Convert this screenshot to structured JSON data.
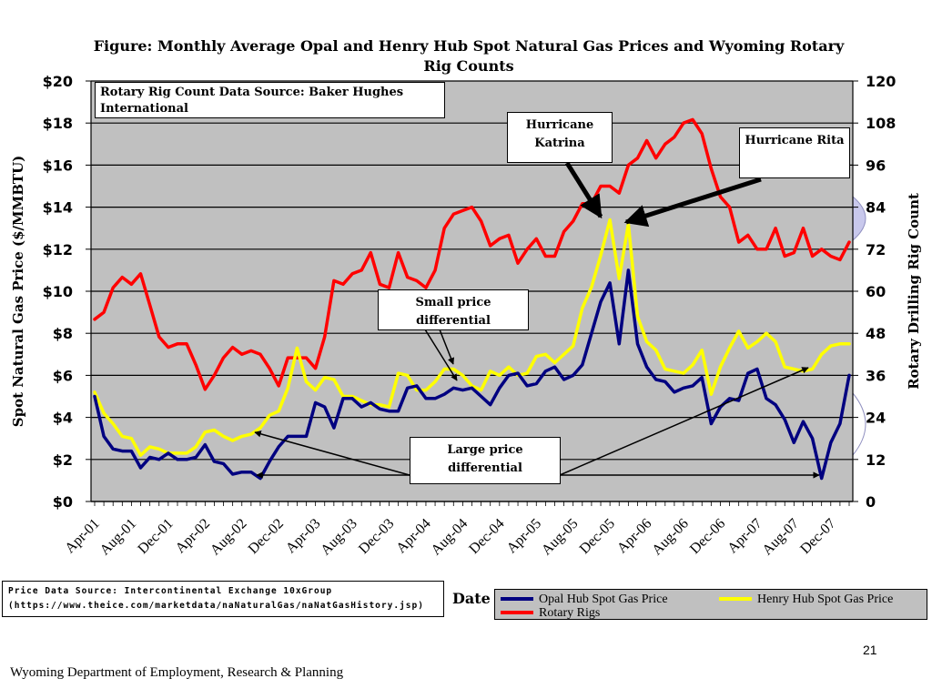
{
  "chart_data": {
    "type": "line",
    "title": "Figure: Monthly Average Opal and Henry Hub Spot Natural Gas Prices and Wyoming Rotary Rig Counts",
    "xlabel": "Date",
    "ylabel": "Spot Natural Gas Price ($/MMBTU)",
    "y2label": "Rotary Drilling Rig Count",
    "ylim": [
      0,
      20
    ],
    "y2lim": [
      0,
      120
    ],
    "yticks": [
      "$0",
      "$2",
      "$4",
      "$6",
      "$8",
      "$10",
      "$12",
      "$14",
      "$16",
      "$18",
      "$20"
    ],
    "y2ticks": [
      "0",
      "12",
      "24",
      "36",
      "48",
      "60",
      "72",
      "84",
      "96",
      "108",
      "120"
    ],
    "x_start": "Apr-01",
    "x_end": "Mar-08",
    "xticks": [
      "Apr-01",
      "Aug-01",
      "Dec-01",
      "Apr-02",
      "Aug-02",
      "Dec-02",
      "Apr-03",
      "Aug-03",
      "Dec-03",
      "Apr-04",
      "Aug-04",
      "Dec-04",
      "Apr-05",
      "Aug-05",
      "Dec-05",
      "Apr-06",
      "Aug-06",
      "Dec-06",
      "Apr-07",
      "Aug-07",
      "Dec-07"
    ],
    "grid": true,
    "legend_position": "bottom-right",
    "series": [
      {
        "name": "Opal Hub Spot Gas Price",
        "axis": "left",
        "color": "#000080",
        "values": [
          5.0,
          3.1,
          2.5,
          2.4,
          2.4,
          1.6,
          2.1,
          2.0,
          2.3,
          2.0,
          2.0,
          2.1,
          2.7,
          1.9,
          1.8,
          1.3,
          1.4,
          1.4,
          1.1,
          1.9,
          2.6,
          3.1,
          3.1,
          3.1,
          4.7,
          4.5,
          3.5,
          4.9,
          4.9,
          4.5,
          4.7,
          4.4,
          4.3,
          4.3,
          5.4,
          5.5,
          4.9,
          4.9,
          5.1,
          5.4,
          5.3,
          5.4,
          5.0,
          4.6,
          5.4,
          6.0,
          6.1,
          5.5,
          5.6,
          6.2,
          6.4,
          5.8,
          6.0,
          6.5,
          8.0,
          9.5,
          10.4,
          7.5,
          11.0,
          7.5,
          6.4,
          5.8,
          5.7,
          5.2,
          5.4,
          5.5,
          5.9,
          3.7,
          4.5,
          4.9,
          4.8,
          6.1,
          6.3,
          4.9,
          4.6,
          3.9,
          2.8,
          3.8,
          3.0,
          1.1,
          2.8,
          3.7,
          6.0
        ]
      },
      {
        "name": "Henry Hub Spot Gas Price",
        "axis": "left",
        "color": "#ffff00",
        "values": [
          5.2,
          4.2,
          3.7,
          3.1,
          3.0,
          2.2,
          2.6,
          2.5,
          2.3,
          2.3,
          2.3,
          2.6,
          3.3,
          3.4,
          3.1,
          2.9,
          3.1,
          3.2,
          3.5,
          4.1,
          4.3,
          5.4,
          7.3,
          5.7,
          5.3,
          5.9,
          5.8,
          5.0,
          5.0,
          4.8,
          4.6,
          4.6,
          4.5,
          6.1,
          6.0,
          5.3,
          5.3,
          5.7,
          6.3,
          6.3,
          6.0,
          5.5,
          5.3,
          6.2,
          6.0,
          6.4,
          6.0,
          6.1,
          6.9,
          7.0,
          6.6,
          7.0,
          7.4,
          9.2,
          10.2,
          11.7,
          13.4,
          10.6,
          13.2,
          8.8,
          7.6,
          7.2,
          6.3,
          6.2,
          6.1,
          6.5,
          7.2,
          5.1,
          6.4,
          7.3,
          8.1,
          7.3,
          7.6,
          8.0,
          7.6,
          6.4,
          6.3,
          6.2,
          6.3,
          7.0,
          7.4,
          7.5,
          7.5
        ]
      },
      {
        "name": "Rotary Rigs",
        "axis": "right",
        "color": "#ff0000",
        "values": [
          52,
          54,
          61,
          64,
          62,
          65,
          56,
          47,
          44,
          45,
          45,
          39,
          32,
          36,
          41,
          44,
          42,
          43,
          42,
          38,
          33,
          41,
          41,
          41,
          38,
          47,
          63,
          62,
          65,
          66,
          71,
          62,
          61,
          71,
          64,
          63,
          61,
          66,
          78,
          82,
          83,
          84,
          80,
          73,
          75,
          76,
          68,
          72,
          75,
          70,
          70,
          77,
          80,
          85,
          85,
          90,
          90,
          88,
          96,
          98,
          103,
          98,
          102,
          104,
          108,
          109,
          105,
          95,
          87,
          84,
          74,
          76,
          72,
          72,
          78,
          70,
          71,
          78,
          70,
          72,
          70,
          69,
          74
        ]
      }
    ]
  },
  "annotations": {
    "rig_source": "Rotary Rig Count Data Source: Baker Hughes International",
    "katrina": "Hurricane Katrina",
    "rita": "Hurricane Rita",
    "small_diff": "Small price differential",
    "large_diff": "Large price differential"
  },
  "price_source_line1": "Price Data Source: Intercontinental Exchange 10xGroup",
  "price_source_line2": "(https://www.theice.com/marketdata/naNaturalGas/naNatGasHistory.jsp)",
  "page_number": "21",
  "footer": "Wyoming Department of Employment, Research & Planning",
  "colors": {
    "plot_background": "#c0c0c0",
    "opal": "#000080",
    "henry": "#ffff00",
    "rigs": "#ff0000"
  }
}
